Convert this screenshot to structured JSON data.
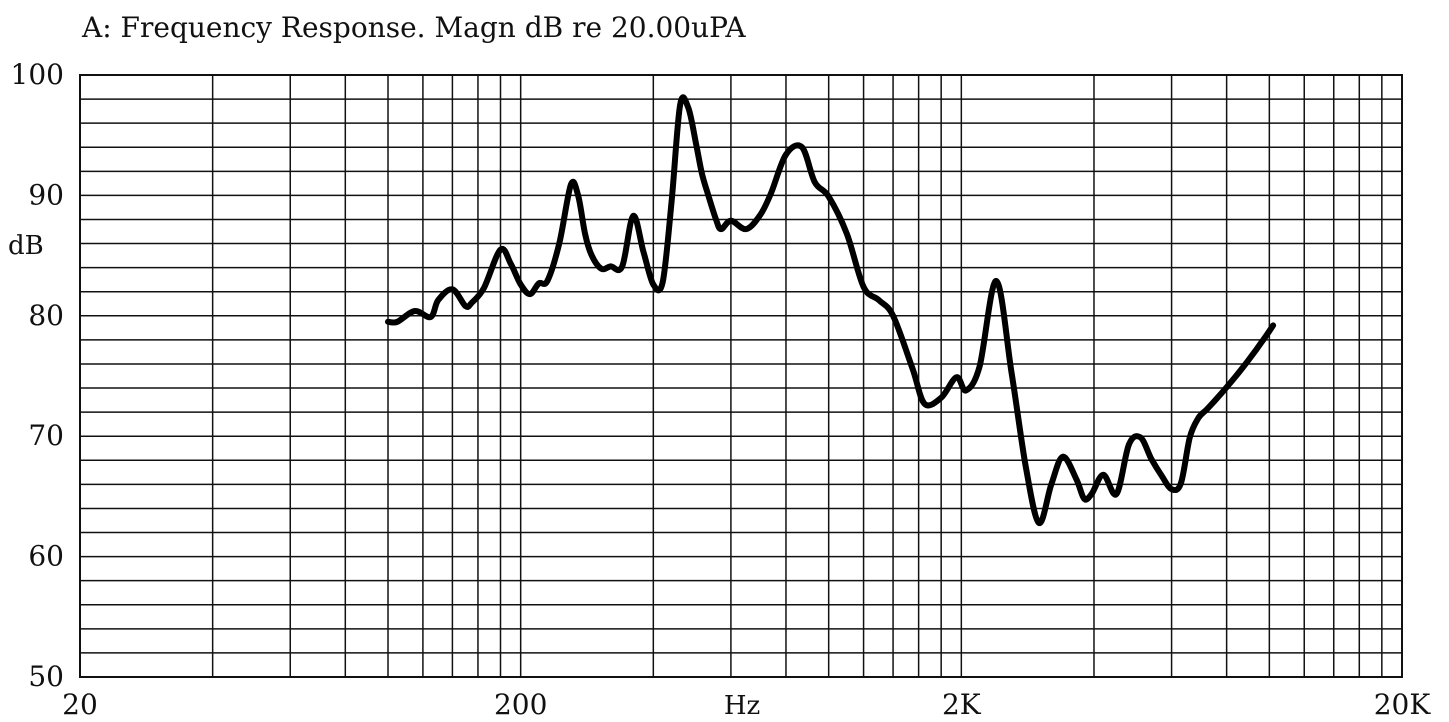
{
  "chart_data": {
    "type": "line",
    "title": "A: Frequency Response. Magn dB re 20.00uPA",
    "xlabel": "Hz",
    "ylabel": "dB",
    "x_scale": "log",
    "xlim": [
      20,
      20000
    ],
    "ylim": [
      50,
      100
    ],
    "grid": true,
    "x_ticks": [
      {
        "value": 20,
        "label": "20"
      },
      {
        "value": 200,
        "label": "200"
      },
      {
        "value": 2000,
        "label": "2K"
      },
      {
        "value": 20000,
        "label": "20K"
      }
    ],
    "y_ticks": [
      {
        "value": 100,
        "label": "100"
      },
      {
        "value": 90,
        "label": "90"
      },
      {
        "value": 80,
        "label": "80"
      },
      {
        "value": 70,
        "label": "70"
      },
      {
        "value": 60,
        "label": "60"
      },
      {
        "value": 50,
        "label": "50"
      }
    ],
    "series": [
      {
        "color": "#000000",
        "x": [
          100,
          105,
          115,
          125,
          130,
          140,
          150,
          155,
          165,
          180,
          190,
          200,
          210,
          220,
          230,
          245,
          260,
          270,
          280,
          290,
          305,
          320,
          340,
          360,
          380,
          400,
          420,
          440,
          460,
          480,
          500,
          515,
          530,
          555,
          570,
          600,
          650,
          700,
          740,
          800,
          870,
          930,
          1000,
          1100,
          1200,
          1300,
          1400,
          1550,
          1650,
          1800,
          1950,
          2050,
          2200,
          2400,
          2600,
          2800,
          3000,
          3200,
          3400,
          3650,
          3800,
          3950,
          4200,
          4500,
          4800,
          5100,
          5400,
          5700,
          6000,
          6300,
          6600,
          6900,
          7200,
          7500,
          7800,
          8100,
          8400,
          8700,
          9000,
          9300,
          9600,
          9900,
          10200
        ],
        "y": [
          79.5,
          79.5,
          80.4,
          79.9,
          81.3,
          82.2,
          80.8,
          81.1,
          82.3,
          85.5,
          84.3,
          82.6,
          81.8,
          82.7,
          82.9,
          86.1,
          90.9,
          90.0,
          86.8,
          85.0,
          83.9,
          84.1,
          84.1,
          88.3,
          85.3,
          82.6,
          82.8,
          89.5,
          97.5,
          97.3,
          94.3,
          91.9,
          90.3,
          88.0,
          87.2,
          87.9,
          87.2,
          88.4,
          90.2,
          93.4,
          94.0,
          91.1,
          89.9,
          86.8,
          82.4,
          81.3,
          80.0,
          75.6,
          72.7,
          73.2,
          74.9,
          73.8,
          75.8,
          82.9,
          75.3,
          67.5,
          62.8,
          66.0,
          68.3,
          66.4,
          64.8,
          65.2,
          66.8,
          65.2,
          69.3,
          69.9,
          68.1,
          66.7,
          65.6,
          66.1,
          69.9,
          71.5,
          72.2,
          72.9,
          73.6,
          74.3,
          75.0,
          75.7,
          76.4,
          77.1,
          77.8,
          78.5,
          79.2
        ]
      }
    ]
  }
}
